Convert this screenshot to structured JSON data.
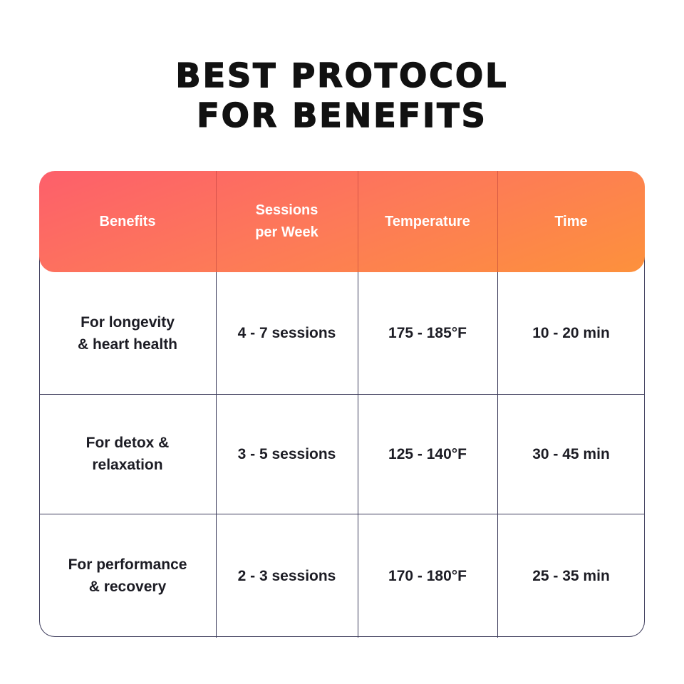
{
  "title": "BEST PROTOCOL\nFOR BENEFITS",
  "table": {
    "header": [
      "Benefits",
      "Sessions\nper Week",
      "Temperature",
      "Time"
    ],
    "rows": [
      [
        "For longevity\n& heart health",
        "4 - 7 sessions",
        "175 - 185°F",
        "10 - 20 min"
      ],
      [
        "For detox &\nrelaxation",
        "3 - 5 sessions",
        "125 - 140°F",
        "30 - 45 min"
      ],
      [
        "For performance\n& recovery",
        "2 - 3 sessions",
        "170 - 180°F",
        "25 - 35 min"
      ]
    ]
  }
}
